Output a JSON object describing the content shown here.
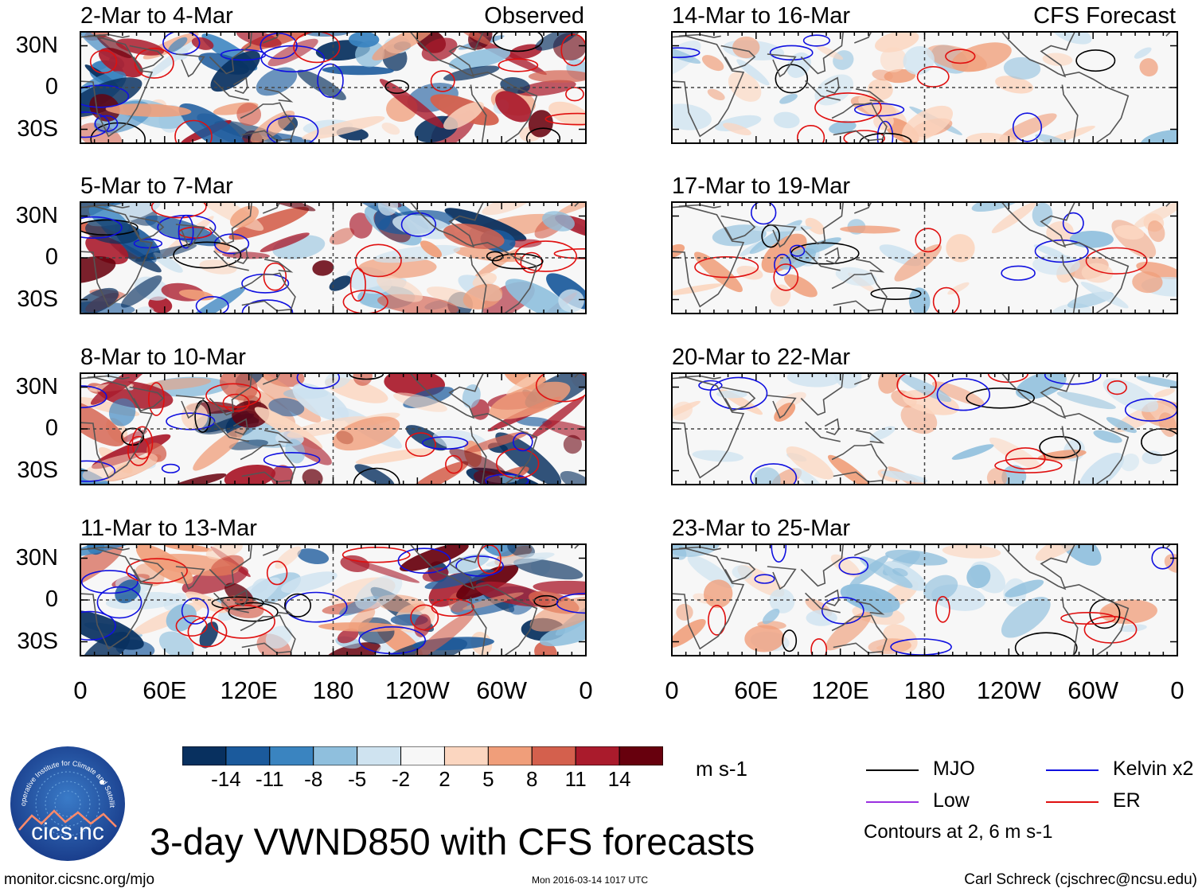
{
  "chart_data": {
    "type": "heatmap",
    "title": "3-day VWND850 with CFS forecasts",
    "variable": "VWND850",
    "units": "m s-1",
    "x_ticks": [
      "0",
      "60E",
      "120E",
      "180",
      "120W",
      "60W",
      "0"
    ],
    "y_ticks": [
      "30N",
      "0",
      "30S"
    ],
    "colorbar": {
      "ticks": [
        "-14",
        "-11",
        "-8",
        "-5",
        "-2",
        "2",
        "5",
        "8",
        "11",
        "14"
      ],
      "colors": [
        "#08305f",
        "#1b5a9c",
        "#3a84c0",
        "#8fbfdd",
        "#cfe3f0",
        "#f7f7f7",
        "#fbd6c0",
        "#f09e7a",
        "#d4604d",
        "#aa1b2c",
        "#67000d"
      ],
      "units": "m s-1"
    },
    "panels": [
      {
        "column": "Observed",
        "period": "2-Mar to 4-Mar",
        "label": "Observed"
      },
      {
        "column": "Observed",
        "period": "5-Mar to 7-Mar"
      },
      {
        "column": "Observed",
        "period": "8-Mar to 10-Mar"
      },
      {
        "column": "Observed",
        "period": "11-Mar to 13-Mar"
      },
      {
        "column": "CFS Forecast",
        "period": "14-Mar to 16-Mar",
        "label": "CFS Forecast"
      },
      {
        "column": "CFS Forecast",
        "period": "17-Mar to 19-Mar"
      },
      {
        "column": "CFS Forecast",
        "period": "20-Mar to 22-Mar"
      },
      {
        "column": "CFS Forecast",
        "period": "23-Mar to 25-Mar"
      }
    ],
    "legend": [
      {
        "name": "MJO",
        "color": "#000000"
      },
      {
        "name": "Kelvin x2",
        "color": "#1010e0"
      },
      {
        "name": "Low",
        "color": "#9a30e0"
      },
      {
        "name": "ER",
        "color": "#e01010"
      }
    ],
    "contour_note": "Contours at 2, 6 m s-1"
  },
  "logo": {
    "text": "cics.nc",
    "arc_text": "Cooperative Institute for Climate and Satellites"
  },
  "footer": {
    "left": "monitor.cicsnc.org/mjo",
    "center": "Mon 2016-03-14 1017 UTC",
    "right": "Carl Schreck (cjschrec@ncsu.edu)"
  }
}
